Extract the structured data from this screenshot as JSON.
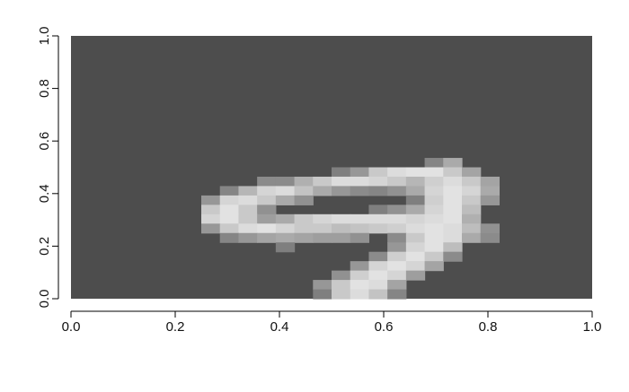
{
  "chart_data": {
    "type": "heatmap",
    "title": "",
    "xlabel": "",
    "ylabel": "",
    "xlim": [
      0,
      1
    ],
    "ylim": [
      0,
      1
    ],
    "x_ticks": [
      0.0,
      0.2,
      0.4,
      0.6,
      0.8,
      1.0
    ],
    "x_tick_labels": [
      "0.0",
      "0.2",
      "0.4",
      "0.6",
      "0.8",
      "1.0"
    ],
    "y_ticks": [
      0.0,
      0.2,
      0.4,
      0.6,
      0.8,
      1.0
    ],
    "y_tick_labels": [
      "0.0",
      "0.2",
      "0.4",
      "0.6",
      "0.8",
      "1.0"
    ],
    "grid": false,
    "colors": {
      "background": "#4d4d4d",
      "low": "#4d4d4d",
      "high": "#ebebeb",
      "axis": "#000000"
    },
    "value_range": [
      0,
      255
    ],
    "rows": 28,
    "cols": 28,
    "cells": [
      [
        13,
        19,
        90
      ],
      [
        13,
        20,
        150
      ],
      [
        14,
        14,
        80
      ],
      [
        14,
        15,
        120
      ],
      [
        14,
        16,
        200
      ],
      [
        14,
        17,
        230
      ],
      [
        14,
        18,
        240
      ],
      [
        14,
        19,
        240
      ],
      [
        14,
        20,
        200
      ],
      [
        14,
        21,
        140
      ],
      [
        15,
        10,
        100
      ],
      [
        15,
        11,
        100
      ],
      [
        15,
        12,
        160
      ],
      [
        15,
        13,
        200
      ],
      [
        15,
        14,
        230
      ],
      [
        15,
        15,
        230
      ],
      [
        15,
        16,
        220
      ],
      [
        15,
        17,
        200
      ],
      [
        15,
        18,
        170
      ],
      [
        15,
        19,
        210
      ],
      [
        15,
        20,
        230
      ],
      [
        15,
        21,
        200
      ],
      [
        15,
        22,
        140
      ],
      [
        16,
        8,
        90
      ],
      [
        16,
        9,
        170
      ],
      [
        16,
        10,
        220
      ],
      [
        16,
        11,
        230
      ],
      [
        16,
        12,
        190
      ],
      [
        16,
        13,
        150
      ],
      [
        16,
        14,
        120
      ],
      [
        16,
        15,
        100
      ],
      [
        16,
        16,
        90
      ],
      [
        16,
        17,
        110
      ],
      [
        16,
        18,
        150
      ],
      [
        16,
        19,
        220
      ],
      [
        16,
        20,
        240
      ],
      [
        16,
        21,
        220
      ],
      [
        16,
        22,
        150
      ],
      [
        17,
        7,
        120
      ],
      [
        17,
        8,
        220
      ],
      [
        17,
        9,
        230
      ],
      [
        17,
        10,
        200
      ],
      [
        17,
        11,
        150
      ],
      [
        17,
        12,
        110
      ],
      [
        17,
        18,
        80
      ],
      [
        17,
        19,
        210
      ],
      [
        17,
        20,
        240
      ],
      [
        17,
        21,
        200
      ],
      [
        17,
        22,
        120
      ],
      [
        18,
        7,
        200
      ],
      [
        18,
        8,
        240
      ],
      [
        18,
        9,
        200
      ],
      [
        18,
        10,
        110
      ],
      [
        18,
        16,
        80
      ],
      [
        18,
        17,
        110
      ],
      [
        18,
        18,
        150
      ],
      [
        18,
        19,
        220
      ],
      [
        18,
        20,
        240
      ],
      [
        18,
        21,
        180
      ],
      [
        19,
        7,
        220
      ],
      [
        19,
        8,
        240
      ],
      [
        19,
        9,
        200
      ],
      [
        19,
        10,
        130
      ],
      [
        19,
        11,
        150
      ],
      [
        19,
        12,
        200
      ],
      [
        19,
        13,
        220
      ],
      [
        19,
        14,
        230
      ],
      [
        19,
        15,
        230
      ],
      [
        19,
        16,
        230
      ],
      [
        19,
        17,
        230
      ],
      [
        19,
        18,
        220
      ],
      [
        19,
        19,
        230
      ],
      [
        19,
        20,
        240
      ],
      [
        19,
        21,
        160
      ],
      [
        20,
        7,
        120
      ],
      [
        20,
        8,
        200
      ],
      [
        20,
        9,
        230
      ],
      [
        20,
        10,
        240
      ],
      [
        20,
        11,
        220
      ],
      [
        20,
        12,
        200
      ],
      [
        20,
        13,
        200
      ],
      [
        20,
        14,
        180
      ],
      [
        20,
        15,
        190
      ],
      [
        20,
        16,
        200
      ],
      [
        20,
        17,
        210
      ],
      [
        20,
        18,
        230
      ],
      [
        20,
        19,
        240
      ],
      [
        20,
        20,
        230
      ],
      [
        20,
        21,
        180
      ],
      [
        20,
        22,
        110
      ],
      [
        21,
        8,
        90
      ],
      [
        21,
        9,
        120
      ],
      [
        21,
        10,
        140
      ],
      [
        21,
        11,
        150
      ],
      [
        21,
        12,
        140
      ],
      [
        21,
        13,
        130
      ],
      [
        21,
        14,
        130
      ],
      [
        21,
        15,
        110
      ],
      [
        21,
        17,
        100
      ],
      [
        21,
        18,
        200
      ],
      [
        21,
        19,
        240
      ],
      [
        21,
        20,
        230
      ],
      [
        21,
        21,
        150
      ],
      [
        21,
        22,
        100
      ],
      [
        22,
        11,
        80
      ],
      [
        22,
        17,
        120
      ],
      [
        22,
        18,
        220
      ],
      [
        22,
        19,
        240
      ],
      [
        22,
        20,
        180
      ],
      [
        23,
        16,
        100
      ],
      [
        23,
        17,
        210
      ],
      [
        23,
        18,
        240
      ],
      [
        23,
        19,
        200
      ],
      [
        23,
        20,
        100
      ],
      [
        24,
        15,
        120
      ],
      [
        24,
        16,
        220
      ],
      [
        24,
        17,
        240
      ],
      [
        24,
        18,
        220
      ],
      [
        24,
        19,
        140
      ],
      [
        25,
        14,
        110
      ],
      [
        25,
        15,
        210
      ],
      [
        25,
        16,
        240
      ],
      [
        25,
        17,
        220
      ],
      [
        25,
        18,
        130
      ],
      [
        26,
        13,
        120
      ],
      [
        26,
        14,
        200
      ],
      [
        26,
        15,
        240
      ],
      [
        26,
        16,
        230
      ],
      [
        26,
        17,
        140
      ],
      [
        27,
        13,
        80
      ],
      [
        27,
        14,
        200
      ],
      [
        27,
        15,
        230
      ],
      [
        27,
        16,
        190
      ],
      [
        27,
        17,
        90
      ]
    ]
  }
}
